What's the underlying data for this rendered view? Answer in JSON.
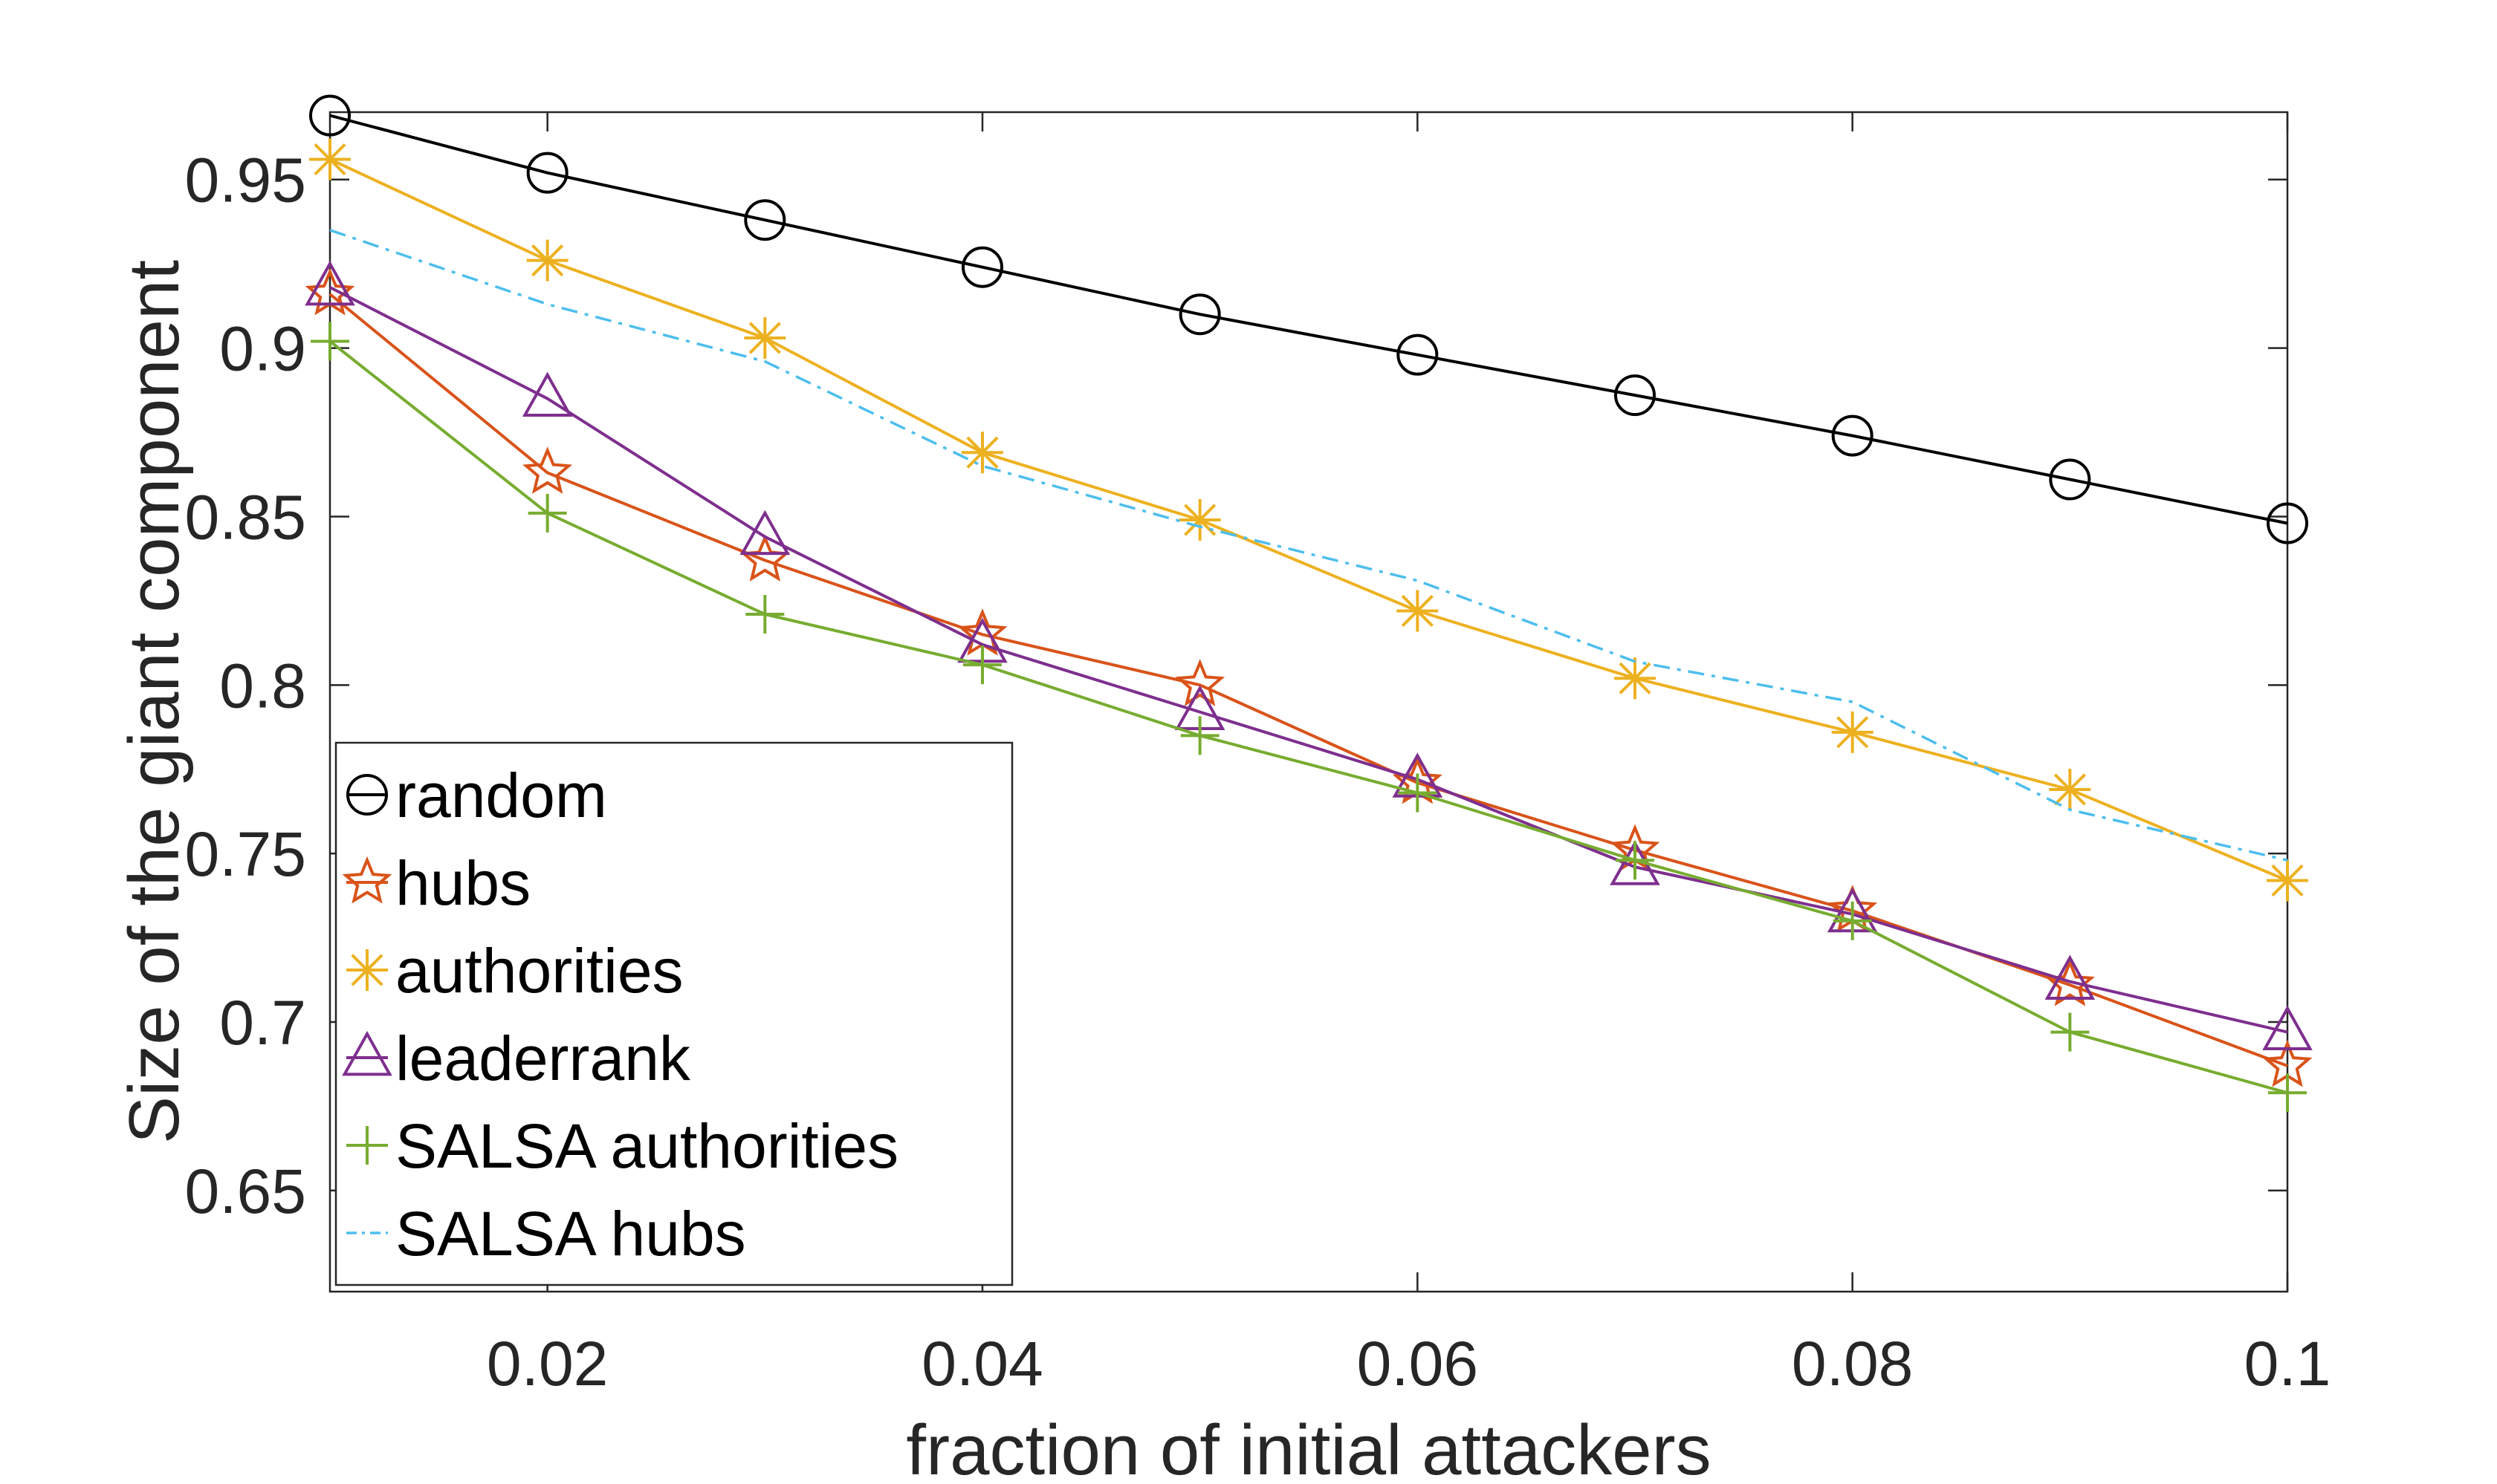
{
  "chart_data": {
    "type": "line",
    "title": "",
    "xlabel": "fraction of initial attackers",
    "ylabel": "Size of the giant component",
    "xlim": [
      0.01,
      0.1
    ],
    "ylim": [
      0.62,
      0.97
    ],
    "xticks": [
      0.02,
      0.04,
      0.06,
      0.08,
      0.1
    ],
    "xtick_labels": [
      "0.02",
      "0.04",
      "0.06",
      "0.08",
      "0.1"
    ],
    "yticks": [
      0.65,
      0.7,
      0.75,
      0.8,
      0.85,
      0.9,
      0.95
    ],
    "ytick_labels": [
      "0.65",
      "0.7",
      "0.75",
      "0.8",
      "0.85",
      "0.9",
      "0.95"
    ],
    "grid": false,
    "legend_position": "bottom-left",
    "x": [
      0.01,
      0.02,
      0.03,
      0.04,
      0.05,
      0.06,
      0.07,
      0.08,
      0.09,
      0.1
    ],
    "series": [
      {
        "name": "random",
        "color": "#000000",
        "marker": "circle",
        "dash": "solid",
        "values": [
          0.969,
          0.952,
          0.938,
          0.924,
          0.91,
          0.898,
          0.886,
          0.874,
          0.861,
          0.848
        ]
      },
      {
        "name": "hubs",
        "color": "#D95319",
        "marker": "star",
        "dash": "solid",
        "values": [
          0.916,
          0.863,
          0.837,
          0.815,
          0.8,
          0.771,
          0.751,
          0.733,
          0.711,
          0.687
        ]
      },
      {
        "name": "authorities",
        "color": "#EDB120",
        "marker": "asterisk",
        "dash": "solid",
        "values": [
          0.956,
          0.926,
          0.903,
          0.869,
          0.849,
          0.822,
          0.802,
          0.786,
          0.769,
          0.742
        ]
      },
      {
        "name": "leaderrank",
        "color": "#7E2F8E",
        "marker": "triangle",
        "dash": "solid",
        "values": [
          0.918,
          0.885,
          0.844,
          0.812,
          0.792,
          0.772,
          0.746,
          0.732,
          0.712,
          0.697
        ]
      },
      {
        "name": "SALSA authorities",
        "color": "#77AC30",
        "marker": "plus",
        "dash": "solid",
        "values": [
          0.902,
          0.851,
          0.821,
          0.806,
          0.785,
          0.768,
          0.748,
          0.73,
          0.697,
          0.679
        ]
      },
      {
        "name": "SALSA hubs",
        "color": "#4DBEEE",
        "marker": "none",
        "dash": "dashdot",
        "values": [
          0.935,
          0.913,
          0.896,
          0.865,
          0.847,
          0.831,
          0.807,
          0.795,
          0.763,
          0.748
        ]
      }
    ]
  }
}
